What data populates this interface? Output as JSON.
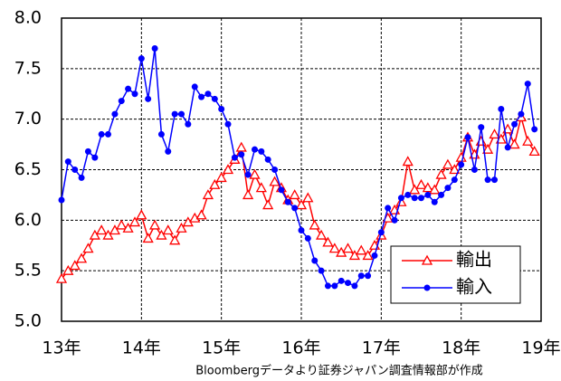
{
  "chart_data": {
    "type": "line",
    "x": [
      13,
      13.083,
      13.167,
      13.25,
      13.333,
      13.417,
      13.5,
      13.583,
      13.667,
      13.75,
      13.833,
      13.917,
      14,
      14.083,
      14.167,
      14.25,
      14.333,
      14.417,
      14.5,
      14.583,
      14.667,
      14.75,
      14.833,
      14.917,
      15,
      15.083,
      15.167,
      15.25,
      15.333,
      15.417,
      15.5,
      15.583,
      15.667,
      15.75,
      15.833,
      15.917,
      16,
      16.083,
      16.167,
      16.25,
      16.333,
      16.417,
      16.5,
      16.583,
      16.667,
      16.75,
      16.833,
      16.917,
      17,
      17.083,
      17.167,
      17.25,
      17.333,
      17.417,
      17.5,
      17.583,
      17.667,
      17.75,
      17.833,
      17.917,
      18,
      18.083,
      18.167,
      18.25,
      18.333,
      18.417,
      18.5,
      18.583,
      18.667,
      18.75,
      18.833,
      18.917
    ],
    "series": [
      {
        "name": "輸出",
        "color": "#ff0000",
        "marker": "triangle",
        "values": [
          5.42,
          5.5,
          5.55,
          5.62,
          5.72,
          5.85,
          5.9,
          5.85,
          5.9,
          5.95,
          5.92,
          5.98,
          6.05,
          5.82,
          5.95,
          5.85,
          5.9,
          5.8,
          5.92,
          5.98,
          6.02,
          6.05,
          6.25,
          6.35,
          6.42,
          6.5,
          6.6,
          6.72,
          6.25,
          6.45,
          6.32,
          6.15,
          6.38,
          6.32,
          6.2,
          6.25,
          6.15,
          6.22,
          5.95,
          5.85,
          5.78,
          5.72,
          5.68,
          5.72,
          5.65,
          5.7,
          5.65,
          5.75,
          5.85,
          6.02,
          6.1,
          6.18,
          6.58,
          6.3,
          6.35,
          6.32,
          6.3,
          6.45,
          6.55,
          6.5,
          6.62,
          6.82,
          6.65,
          6.78,
          6.7,
          6.85,
          6.8,
          6.9,
          6.75,
          7.02,
          6.78,
          6.68
        ]
      },
      {
        "name": "輸入",
        "color": "#0000ff",
        "marker": "circle",
        "values": [
          6.2,
          6.58,
          6.5,
          6.42,
          6.68,
          6.62,
          6.85,
          6.85,
          7.05,
          7.18,
          7.3,
          7.25,
          7.6,
          7.2,
          7.7,
          6.85,
          6.68,
          7.05,
          7.05,
          6.95,
          7.32,
          7.22,
          7.25,
          7.2,
          7.1,
          6.95,
          6.62,
          6.65,
          6.45,
          6.7,
          6.68,
          6.6,
          6.5,
          6.3,
          6.18,
          6.12,
          5.9,
          5.82,
          5.6,
          5.5,
          5.35,
          5.35,
          5.4,
          5.38,
          5.35,
          5.45,
          5.45,
          5.65,
          5.88,
          6.12,
          6.0,
          6.22,
          6.25,
          6.22,
          6.22,
          6.25,
          6.18,
          6.25,
          6.32,
          6.4,
          6.55,
          6.82,
          6.5,
          6.92,
          6.4,
          6.4,
          7.1,
          6.72,
          6.95,
          7.05,
          7.35,
          6.9
        ]
      }
    ],
    "xlim": [
      13,
      19
    ],
    "xticks": [
      {
        "value": 13,
        "label": "13年"
      },
      {
        "value": 14,
        "label": "14年"
      },
      {
        "value": 15,
        "label": "15年"
      },
      {
        "value": 16,
        "label": "16年"
      },
      {
        "value": 17,
        "label": "17年"
      },
      {
        "value": 18,
        "label": "18年"
      },
      {
        "value": 19,
        "label": "19年"
      }
    ],
    "ylim": [
      5,
      8
    ],
    "yticks": [
      {
        "value": 5,
        "label": "5.0"
      },
      {
        "value": 5.5,
        "label": "5.5"
      },
      {
        "value": 6,
        "label": "6.0"
      },
      {
        "value": 6.5,
        "label": "6.5"
      },
      {
        "value": 7,
        "label": "7.0"
      },
      {
        "value": 7.5,
        "label": "7.5"
      },
      {
        "value": 8,
        "label": "8.0"
      }
    ],
    "grid": true,
    "legend": "lower right",
    "source": "Bloombergデータより証券ジャパン調査情報部が作成"
  }
}
